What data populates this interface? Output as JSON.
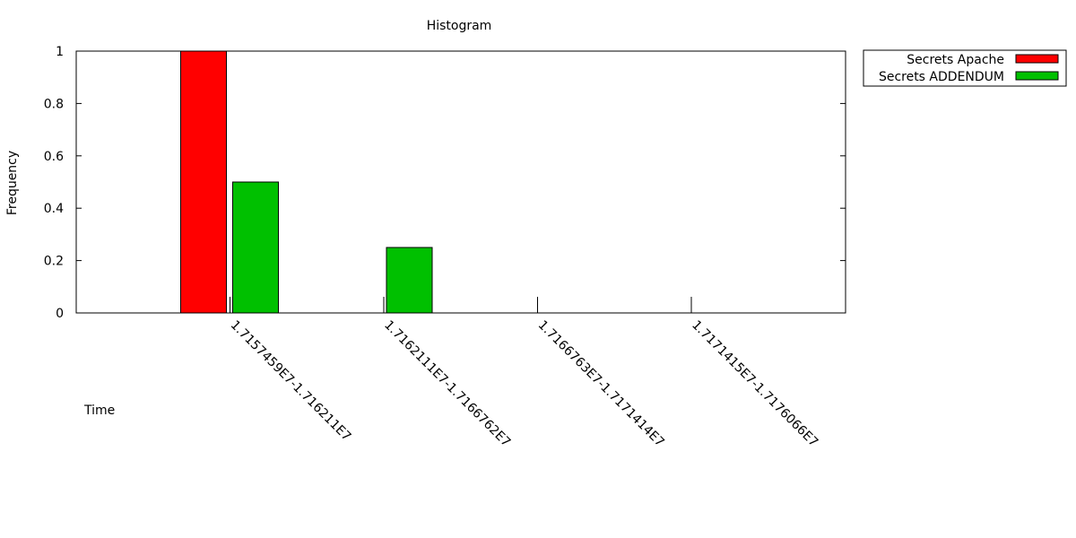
{
  "chart_data": {
    "type": "bar",
    "title": "Histogram",
    "xlabel": "Time",
    "ylabel": "Frequency",
    "ylim": [
      0,
      1
    ],
    "yticks": [
      "0",
      "0.2",
      "0.4",
      "0.6",
      "0.8",
      "1"
    ],
    "categories": [
      "1.7157459E7-1.716211E7",
      "1.7162111E7-1.7166762E7",
      "1.7166763E7-1.7171414E7",
      "1.7171415E7-1.7176066E7"
    ],
    "series": [
      {
        "name": "Secrets Apache",
        "color": "#ff0000",
        "values": [
          1,
          0,
          0,
          0
        ]
      },
      {
        "name": "Secrets ADDENDUM",
        "color": "#00c000",
        "values": [
          0.5,
          0.25,
          0,
          0
        ]
      }
    ],
    "legend_position": "outside-top-right",
    "grid": false
  }
}
